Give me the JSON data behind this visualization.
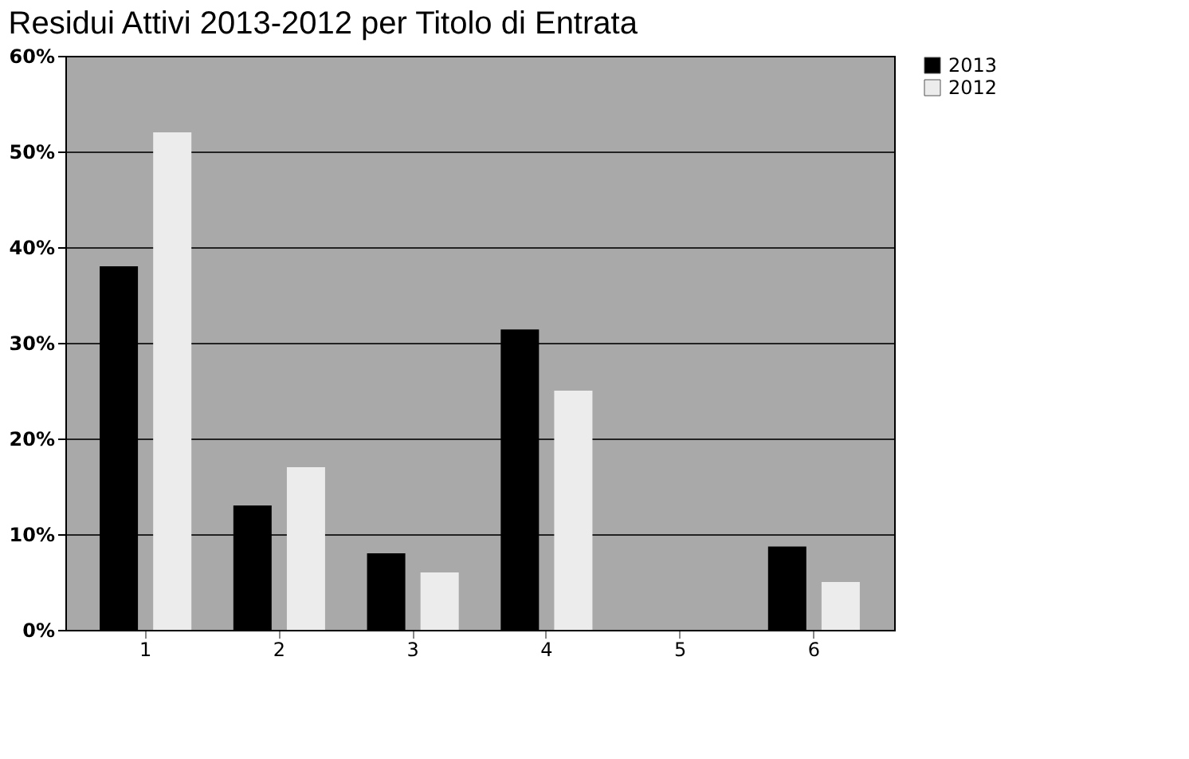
{
  "chart_data": {
    "type": "bar",
    "title": "Residui Attivi 2013-2012 per Titolo di Entrata",
    "categories": [
      "1",
      "2",
      "3",
      "4",
      "5",
      "6"
    ],
    "series": [
      {
        "name": "2013",
        "color": "#000000",
        "values": [
          38,
          13,
          8,
          31.4,
          0,
          8.7
        ]
      },
      {
        "name": "2012",
        "color": "#ececec",
        "values": [
          52,
          17,
          6,
          25,
          0,
          5
        ]
      }
    ],
    "ylim": [
      0,
      60
    ],
    "yticks": [
      {
        "value": 0,
        "label": "0%"
      },
      {
        "value": 10,
        "label": "10%"
      },
      {
        "value": 20,
        "label": "20%"
      },
      {
        "value": 30,
        "label": "30%"
      },
      {
        "value": 40,
        "label": "40%"
      },
      {
        "value": 50,
        "label": "50%"
      },
      {
        "value": 60,
        "label": "60%"
      }
    ],
    "grid": "y",
    "legend": "right"
  }
}
